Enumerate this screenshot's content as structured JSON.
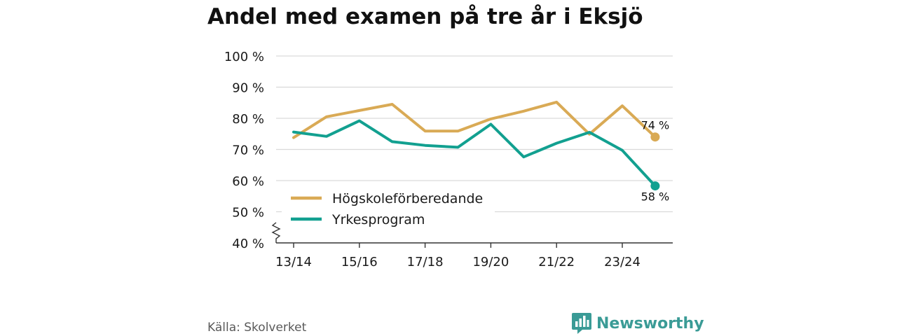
{
  "title": "Andel med examen på tre år i Eksjö",
  "source": "Källa: Skolverket",
  "brand": {
    "name": "Newsworthy",
    "icon": "bar-chart-speech-bubble-icon",
    "color": "#3a9b96"
  },
  "chart_data": {
    "type": "line",
    "title": "Andel med examen på tre år i Eksjö",
    "xlabel": "",
    "ylabel": "",
    "ylim": [
      40,
      100
    ],
    "y_axis_break": true,
    "grid": true,
    "legend_position": "bottom-left",
    "categories": [
      "13/14",
      "14/15",
      "15/16",
      "16/17",
      "17/18",
      "18/19",
      "19/20",
      "20/21",
      "21/22",
      "22/23",
      "23/24",
      "24/25"
    ],
    "x_tick_labels": [
      "13/14",
      "",
      "15/16",
      "",
      "17/18",
      "",
      "19/20",
      "",
      "21/22",
      "",
      "23/24",
      ""
    ],
    "y_ticks": [
      40,
      50,
      60,
      70,
      80,
      90,
      100
    ],
    "y_tick_labels": [
      "40 %",
      "50 %",
      "60 %",
      "70 %",
      "80 %",
      "90 %",
      "100 %"
    ],
    "series": [
      {
        "name": "Högskoleförberedande",
        "color": "#d9aa55",
        "values": [
          73.8,
          80.5,
          82.5,
          84.5,
          75.9,
          75.9,
          79.8,
          82.3,
          85.2,
          74.9,
          84.0,
          74.0
        ],
        "end_label": "74 %"
      },
      {
        "name": "Yrkesprogram",
        "color": "#12a090",
        "values": [
          75.6,
          74.2,
          79.2,
          72.5,
          71.3,
          70.7,
          78.1,
          67.6,
          72.0,
          75.5,
          69.7,
          58.3
        ],
        "end_label": "58 %"
      }
    ]
  }
}
